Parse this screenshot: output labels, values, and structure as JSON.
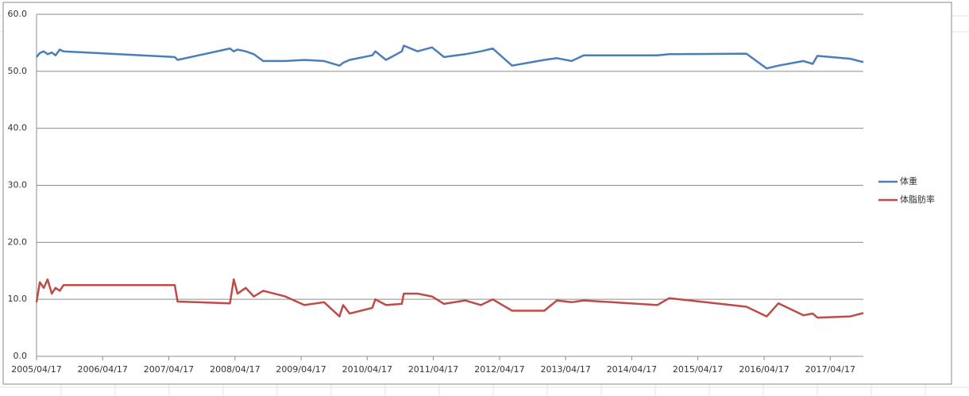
{
  "chart_data": {
    "type": "line",
    "x": [
      "2005/04/17",
      "2005/05/05",
      "2005/05/27",
      "2005/06/17",
      "2005/07/10",
      "2005/07/31",
      "2005/08/23",
      "2005/09/13",
      "2007/05/20",
      "2007/06/05",
      "2008/03/20",
      "2008/04/10",
      "2008/05/01",
      "2008/06/15",
      "2008/07/30",
      "2008/09/20",
      "2009/01/20",
      "2009/05/05",
      "2009/08/22",
      "2009/11/15",
      "2009/12/05",
      "2010/01/10",
      "2010/05/15",
      "2010/06/01",
      "2010/07/30",
      "2010/10/25",
      "2010/11/05",
      "2011/01/20",
      "2011/04/10",
      "2011/06/15",
      "2011/10/10",
      "2012/01/05",
      "2012/03/10",
      "2012/06/25",
      "2012/12/20",
      "2013/02/28",
      "2013/05/20",
      "2013/07/25",
      "2014/09/05",
      "2014/11/10",
      "2016/01/10",
      "2016/05/01",
      "2016/07/05",
      "2016/11/20",
      "2017/01/10",
      "2017/02/05",
      "2017/08/05",
      "2017/10/17"
    ],
    "series": [
      {
        "name": "体重",
        "color": "#4a7ebb",
        "values": [
          52.5,
          53.2,
          53.5,
          53.0,
          53.3,
          52.8,
          53.8,
          53.5,
          52.5,
          52.0,
          54.0,
          53.5,
          53.8,
          53.5,
          53.0,
          51.8,
          51.8,
          52.0,
          51.8,
          51.0,
          51.5,
          52.0,
          52.8,
          53.5,
          52.0,
          53.5,
          54.5,
          53.5,
          54.2,
          52.5,
          53.0,
          53.5,
          54.0,
          51.0,
          52.0,
          52.3,
          51.8,
          52.8,
          52.8,
          53.0,
          53.1,
          50.5,
          51.0,
          51.8,
          51.3,
          52.7,
          52.2,
          51.6
        ]
      },
      {
        "name": "体脂肪率",
        "color": "#be4b48",
        "values": [
          9.5,
          13.0,
          12.0,
          13.5,
          11.0,
          12.0,
          11.5,
          12.5,
          12.5,
          9.6,
          9.3,
          13.5,
          11.0,
          12.0,
          10.5,
          11.5,
          10.5,
          9.0,
          9.5,
          7.0,
          9.0,
          7.5,
          8.5,
          10.0,
          9.0,
          9.2,
          11.0,
          11.0,
          10.5,
          9.2,
          9.8,
          9.0,
          10.0,
          8.0,
          8.0,
          9.8,
          9.5,
          9.8,
          9.0,
          10.2,
          8.7,
          7.0,
          9.3,
          7.2,
          7.5,
          6.8,
          7.0,
          7.6
        ]
      }
    ],
    "xlim": [
      "2005/04/17",
      "2017/10/17"
    ],
    "xticks": [
      "2005/04/17",
      "2006/04/17",
      "2007/04/17",
      "2008/04/17",
      "2009/04/17",
      "2010/04/17",
      "2011/04/17",
      "2012/04/17",
      "2013/04/17",
      "2014/04/17",
      "2015/04/17",
      "2016/04/17",
      "2017/04/17"
    ],
    "ylim": [
      0,
      60
    ],
    "yticks": [
      {
        "value": 0,
        "label": "0.0"
      },
      {
        "value": 10,
        "label": "10.0"
      },
      {
        "value": 20,
        "label": "20.0"
      },
      {
        "value": 30,
        "label": "30.0"
      },
      {
        "value": 40,
        "label": "40.0"
      },
      {
        "value": 50,
        "label": "50.0"
      },
      {
        "value": 60,
        "label": "60.0"
      }
    ],
    "grid": true,
    "legend": "right"
  }
}
